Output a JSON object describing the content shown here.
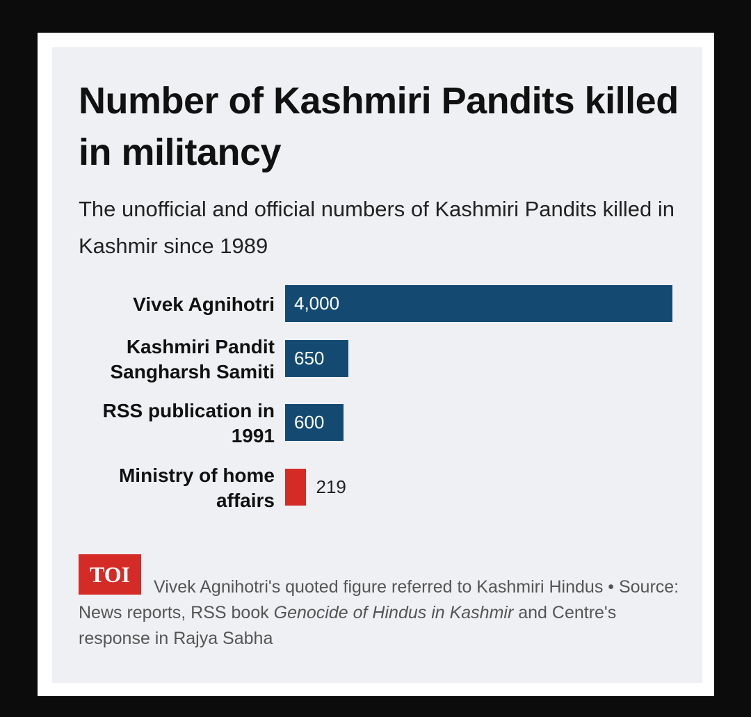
{
  "title": "Number of Kashmiri Pandits killed in militancy",
  "subtitle": "The unofficial and official numbers of Kashmiri Pandits killed in Kashmir since 1989",
  "colors": {
    "official_bar": "#d52b27",
    "unofficial_bar": "#144a72",
    "background": "#eef0f3"
  },
  "chart_data": {
    "type": "bar",
    "orientation": "horizontal",
    "categories": [
      "Vivek Agnihotri",
      "Kashmiri Pandit\nSangharsh Samiti",
      "RSS publication in\n1991",
      "Ministry of home\naffairs"
    ],
    "values": [
      4000,
      650,
      600,
      219
    ],
    "value_labels": [
      "4,000",
      "650",
      "600",
      "219"
    ],
    "bar_colors": [
      "#144a72",
      "#144a72",
      "#144a72",
      "#d52b27"
    ],
    "title": "Number of Kashmiri Pandits killed in militancy",
    "xlim": [
      0,
      4000
    ],
    "grid": false,
    "legend": "none"
  },
  "footer": {
    "logo_text": "TOI",
    "note": "Vivek Agnihotri's quoted figure referred to Kashmiri Hindus •",
    "source_prefix": "Source: News reports, RSS book ",
    "source_italic": "Genocide of Hindus in Kashmir",
    "source_suffix": " and Centre's response in Rajya Sabha"
  }
}
